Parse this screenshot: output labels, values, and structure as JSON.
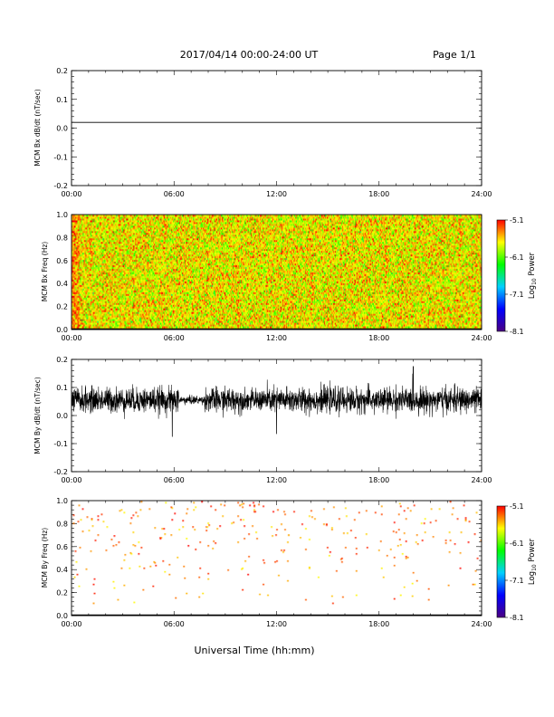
{
  "header": {
    "date_range": "2017/04/14  00:00-24:00 UT",
    "page": "Page 1/1"
  },
  "x_axis": {
    "ticks": [
      "00:00",
      "06:00",
      "12:00",
      "18:00",
      "24:00"
    ],
    "title": "Universal Time (hh:mm)"
  },
  "colorbar": {
    "ticks": [
      "-5.1",
      "-6.1",
      "-7.1",
      "-8.1"
    ],
    "label": "Log10 Power",
    "label_main": "Log",
    "label_sub": "10",
    "label_tail": " Power",
    "range": [
      -8.1,
      -5.1
    ]
  },
  "chart_data": [
    {
      "type": "line",
      "ylabel": "MCM Bx dB/dt (nT/sec)",
      "yticks": [
        "0.2",
        "0.1",
        "0.0",
        "-0.1",
        "-0.2"
      ],
      "ylim": [
        -0.2,
        0.2
      ],
      "xlim": [
        0,
        24
      ],
      "series": [
        {
          "x": [
            0,
            24
          ],
          "y": [
            0.02,
            0.02
          ]
        }
      ]
    },
    {
      "type": "heatmap",
      "ylabel": "MCM Bx Freq (Hz)",
      "yticks": [
        "1.0",
        "0.8",
        "0.6",
        "0.4",
        "0.2",
        "0.0"
      ],
      "ylim": [
        0,
        1.0
      ],
      "xlim": [
        0,
        24
      ],
      "value_range": [
        -8.1,
        -5.1
      ],
      "typical_log_power": -5.7,
      "colormap": [
        "#4b0082",
        "#0000ff",
        "#00d0ff",
        "#00ff00",
        "#ffff00",
        "#ff0000"
      ]
    },
    {
      "type": "line",
      "ylabel": "MCM By dB/dt (nT/sec)",
      "yticks": [
        "0.2",
        "0.1",
        "0.0",
        "-0.1",
        "-0.2"
      ],
      "ylim": [
        -0.2,
        0.2
      ],
      "xlim": [
        0,
        24
      ],
      "baseline": 0.055,
      "typical_amplitude": 0.04,
      "quiet_interval": [
        6.3,
        7.8
      ],
      "notable_spikes": [
        {
          "x": 5.9,
          "y": -0.075
        },
        {
          "x": 12.0,
          "y": -0.065
        },
        {
          "x": 20.0,
          "y": 0.175
        }
      ]
    },
    {
      "type": "heatmap",
      "ylabel": "MCM By Freq (Hz)",
      "yticks": [
        "1.0",
        "0.8",
        "0.6",
        "0.4",
        "0.2",
        "0.0"
      ],
      "ylim": [
        0,
        1.0
      ],
      "xlim": [
        0,
        24
      ],
      "value_range": [
        -8.1,
        -5.1
      ],
      "sparse": true
    }
  ]
}
